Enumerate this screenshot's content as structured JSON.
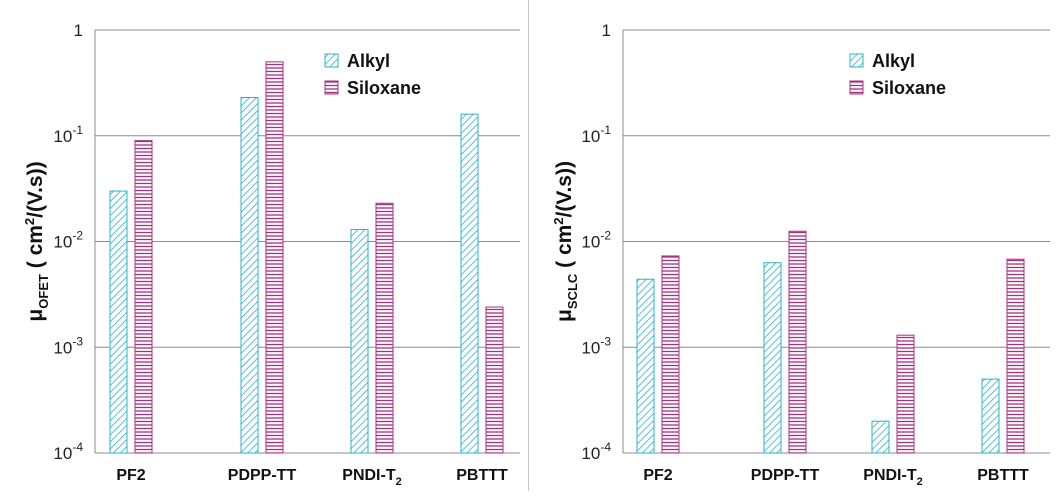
{
  "chart_data": [
    {
      "type": "bar",
      "y_scale": "log",
      "ylim": [
        0.0001,
        1
      ],
      "ytick_labels": [
        {
          "base": "10",
          "exp": "-4"
        },
        {
          "base": "10",
          "exp": "-3"
        },
        {
          "base": "10",
          "exp": "-2"
        },
        {
          "base": "10",
          "exp": "-1"
        },
        {
          "base": "1",
          "exp": ""
        }
      ],
      "ylabel": {
        "mu": "μ",
        "sub": "OFET",
        "units_open": " ( cm",
        "sup": "2",
        "units_close": "/(V.s))"
      },
      "categories": [
        {
          "main": "PF2",
          "sub": ""
        },
        {
          "main": "PDPP-TT",
          "sub": ""
        },
        {
          "main": "PNDI-T",
          "sub": "2"
        },
        {
          "main": "PBTTT",
          "sub": ""
        }
      ],
      "series": [
        {
          "name": "Alkyl",
          "values": [
            0.03,
            0.23,
            0.013,
            0.16
          ],
          "color": "#2ab3c7",
          "pattern": "diagonal"
        },
        {
          "name": "Siloxane",
          "values": [
            0.09,
            0.5,
            0.023,
            0.0024
          ],
          "color": "#a5307f",
          "pattern": "horizontal"
        }
      ],
      "grid": true,
      "legend_position": "top-right"
    },
    {
      "type": "bar",
      "y_scale": "log",
      "ylim": [
        0.0001,
        1
      ],
      "ytick_labels": [
        {
          "base": "10",
          "exp": "-4"
        },
        {
          "base": "10",
          "exp": "-3"
        },
        {
          "base": "10",
          "exp": "-2"
        },
        {
          "base": "10",
          "exp": "-1"
        },
        {
          "base": "1",
          "exp": ""
        }
      ],
      "ylabel": {
        "mu": "μ",
        "sub": "SCLC",
        "units_open": " ( cm",
        "sup": "2",
        "units_close": "/(V.s))"
      },
      "categories": [
        {
          "main": "PF2",
          "sub": ""
        },
        {
          "main": "PDPP-TT",
          "sub": ""
        },
        {
          "main": "PNDI-T",
          "sub": "2"
        },
        {
          "main": "PBTTT",
          "sub": ""
        }
      ],
      "series": [
        {
          "name": "Alkyl",
          "values": [
            0.0044,
            0.0063,
            0.0002,
            0.0005
          ],
          "color": "#2ab3c7",
          "pattern": "diagonal"
        },
        {
          "name": "Siloxane",
          "values": [
            0.0073,
            0.0125,
            0.0013,
            0.0068
          ],
          "color": "#a5307f",
          "pattern": "horizontal"
        }
      ],
      "grid": true,
      "legend_position": "top-right"
    }
  ]
}
